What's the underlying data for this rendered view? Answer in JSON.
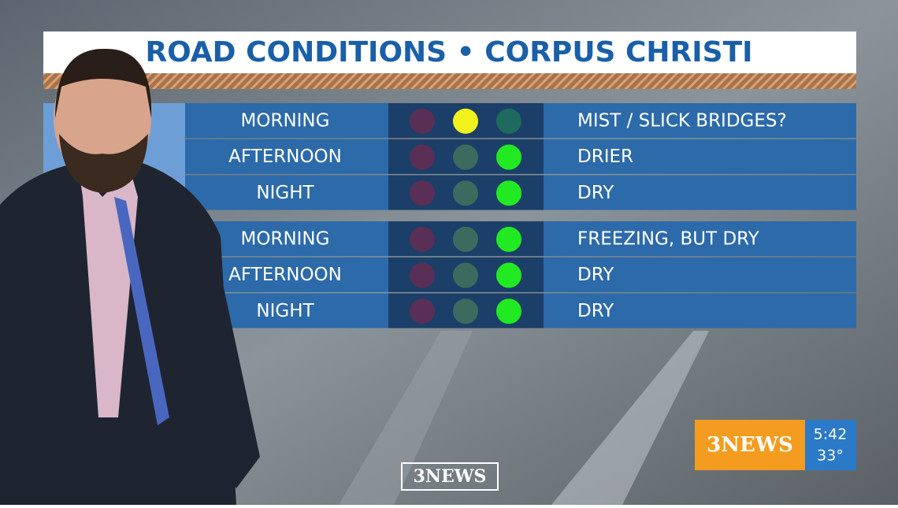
{
  "title": "ROAD CONDITIONS • CORPUS CHRISTI",
  "groups": [
    {
      "rows": [
        {
          "period": "MORNING",
          "status": "yellow",
          "condition": "MIST / SLICK BRIDGES?"
        },
        {
          "period": "AFTERNOON",
          "status": "green",
          "condition": "DRIER"
        },
        {
          "period": "NIGHT",
          "status": "green",
          "condition": "DRY"
        }
      ]
    },
    {
      "rows": [
        {
          "period": "MORNING",
          "status": "green",
          "condition": "FREEZING, BUT DRY"
        },
        {
          "period": "AFTERNOON",
          "status": "green",
          "condition": "DRY"
        },
        {
          "period": "NIGHT",
          "status": "green",
          "condition": "DRY"
        }
      ]
    }
  ],
  "bug": {
    "logo": "3NEWS",
    "time": "5:42",
    "temp": "33°"
  },
  "footer_logo": "3NEWS"
}
